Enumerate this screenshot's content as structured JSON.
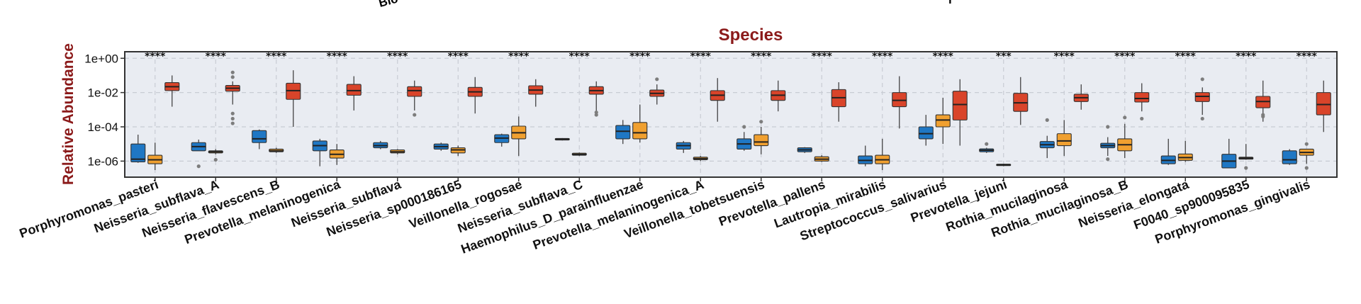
{
  "top_fragment": {
    "left": "Bio",
    "right": "r"
  },
  "chart_data": {
    "type": "box",
    "title": "Species",
    "ylabel": "Relative Abundance",
    "yscale": "log",
    "ylim": [
      3e-07,
      1.5
    ],
    "yticks": [
      1e-06,
      0.0001,
      0.01,
      1
    ],
    "ytick_labels": [
      "1e-06",
      "1e-04",
      "1e-02",
      "1e+00"
    ],
    "grid": true,
    "colors": {
      "group_blue": "#1f77c4",
      "group_orange": "#f0a030",
      "group_red": "#d9442a",
      "title": "#8b1a1a",
      "panel_bg": "#e9ecf2",
      "grid": "#c8ccd4"
    },
    "series": [
      {
        "name": "",
        "color": "#1f77c4"
      },
      {
        "name": "",
        "color": "#f0a030"
      },
      {
        "name": "",
        "color": "#d9442a"
      }
    ],
    "categories": [
      {
        "label": "Porphyromonas_pasteri",
        "sig": "****",
        "boxes": [
          {
            "s": 0,
            "whisker_low": 8e-07,
            "q1": 9e-07,
            "median": 1.3e-06,
            "q3": 1e-05,
            "whisker_high": 3.5e-05,
            "outliers": []
          },
          {
            "s": 1,
            "whisker_low": 3e-07,
            "q1": 7e-07,
            "median": 1.2e-06,
            "q3": 2.2e-06,
            "whisker_high": 1.2e-05,
            "outliers": []
          },
          {
            "s": 2,
            "whisker_low": 0.0015,
            "q1": 0.013,
            "median": 0.022,
            "q3": 0.038,
            "whisker_high": 0.1,
            "outliers": []
          }
        ]
      },
      {
        "label": "Neisseria_subflava_A",
        "sig": "****",
        "boxes": [
          {
            "s": 0,
            "whisker_low": 4e-06,
            "q1": 4e-06,
            "median": 7e-06,
            "q3": 1.2e-05,
            "whisker_high": 1.8e-05,
            "outliers": [
              5e-07
            ]
          },
          {
            "s": 1,
            "whisker_low": 2.5e-06,
            "q1": 3e-06,
            "median": 3.5e-06,
            "q3": 4e-06,
            "whisker_high": 5e-06,
            "outliers": [
              1.2e-06
            ]
          },
          {
            "s": 2,
            "whisker_low": 0.002,
            "q1": 0.012,
            "median": 0.018,
            "q3": 0.026,
            "whisker_high": 0.045,
            "outliers": [
              0.15,
              0.08,
              0.0006,
              0.0003,
              0.00016
            ]
          }
        ]
      },
      {
        "label": "Neisseria_flavescens_B",
        "sig": "****",
        "boxes": [
          {
            "s": 0,
            "whisker_low": 5e-06,
            "q1": 1.2e-05,
            "median": 2e-05,
            "q3": 6e-05,
            "whisker_high": 7e-05,
            "outliers": []
          },
          {
            "s": 1,
            "whisker_low": 3e-06,
            "q1": 3.5e-06,
            "median": 4e-06,
            "q3": 5e-06,
            "whisker_high": 6e-06,
            "outliers": []
          },
          {
            "s": 2,
            "whisker_low": 0.0001,
            "q1": 0.004,
            "median": 0.013,
            "q3": 0.035,
            "whisker_high": 0.2,
            "outliers": []
          }
        ]
      },
      {
        "label": "Prevotella_melaninogenica",
        "sig": "****",
        "boxes": [
          {
            "s": 0,
            "whisker_low": 5e-07,
            "q1": 4e-06,
            "median": 8e-06,
            "q3": 1.5e-05,
            "whisker_high": 2e-05,
            "outliers": []
          },
          {
            "s": 1,
            "whisker_low": 6e-07,
            "q1": 1.5e-06,
            "median": 2.5e-06,
            "q3": 4.5e-06,
            "whisker_high": 1e-05,
            "outliers": []
          },
          {
            "s": 2,
            "whisker_low": 0.0009,
            "q1": 0.007,
            "median": 0.013,
            "q3": 0.03,
            "whisker_high": 0.09,
            "outliers": []
          }
        ]
      },
      {
        "label": "Neisseria_subflava",
        "sig": "****",
        "boxes": [
          {
            "s": 0,
            "whisker_low": 5e-06,
            "q1": 6e-06,
            "median": 8e-06,
            "q3": 1.2e-05,
            "whisker_high": 1.5e-05,
            "outliers": []
          },
          {
            "s": 1,
            "whisker_low": 2.5e-06,
            "q1": 3e-06,
            "median": 3.5e-06,
            "q3": 4.5e-06,
            "whisker_high": 5e-06,
            "outliers": []
          },
          {
            "s": 2,
            "whisker_low": 0.0009,
            "q1": 0.006,
            "median": 0.013,
            "q3": 0.022,
            "whisker_high": 0.05,
            "outliers": [
              0.0005
            ]
          }
        ]
      },
      {
        "label": "Neisseria_sp000186165",
        "sig": "****",
        "boxes": [
          {
            "s": 0,
            "whisker_low": 4e-06,
            "q1": 5e-06,
            "median": 7e-06,
            "q3": 1e-05,
            "whisker_high": 1.2e-05,
            "outliers": []
          },
          {
            "s": 1,
            "whisker_low": 2e-06,
            "q1": 3e-06,
            "median": 4.5e-06,
            "q3": 6e-06,
            "whisker_high": 8e-06,
            "outliers": []
          },
          {
            "s": 2,
            "whisker_low": 0.0006,
            "q1": 0.006,
            "median": 0.011,
            "q3": 0.02,
            "whisker_high": 0.08,
            "outliers": []
          }
        ]
      },
      {
        "label": "Veillonella_rogosae",
        "sig": "****",
        "boxes": [
          {
            "s": 0,
            "whisker_low": 7e-06,
            "q1": 1.2e-05,
            "median": 2.2e-05,
            "q3": 3.5e-05,
            "whisker_high": 4e-05,
            "outliers": []
          },
          {
            "s": 1,
            "whisker_low": 2e-06,
            "q1": 2e-05,
            "median": 4.5e-05,
            "q3": 0.00011,
            "whisker_high": 0.0004,
            "outliers": []
          },
          {
            "s": 2,
            "whisker_low": 0.0015,
            "q1": 0.008,
            "median": 0.014,
            "q3": 0.025,
            "whisker_high": 0.06,
            "outliers": []
          }
        ]
      },
      {
        "label": "Neisseria_subflava_C",
        "sig": "****",
        "boxes": [
          {
            "s": 0,
            "whisker_low": 1.6e-05,
            "q1": 1.7e-05,
            "median": 1.9e-05,
            "q3": 2.1e-05,
            "whisker_high": 2.2e-05,
            "outliers": []
          },
          {
            "s": 1,
            "whisker_low": 2e-06,
            "q1": 2.2e-06,
            "median": 2.5e-06,
            "q3": 2.9e-06,
            "whisker_high": 3.2e-06,
            "outliers": []
          },
          {
            "s": 2,
            "whisker_low": 0.0007,
            "q1": 0.008,
            "median": 0.013,
            "q3": 0.022,
            "whisker_high": 0.045,
            "outliers": [
              0.0005,
              0.0007
            ]
          }
        ]
      },
      {
        "label": "Haemophilus_D_parainfluenzae",
        "sig": "****",
        "boxes": [
          {
            "s": 0,
            "whisker_low": 1e-05,
            "q1": 2e-05,
            "median": 5.5e-05,
            "q3": 0.00012,
            "whisker_high": 0.00025,
            "outliers": []
          },
          {
            "s": 1,
            "whisker_low": 1.2e-05,
            "q1": 2e-05,
            "median": 4.5e-05,
            "q3": 0.00018,
            "whisker_high": 0.002,
            "outliers": []
          },
          {
            "s": 2,
            "whisker_low": 0.002,
            "q1": 0.006,
            "median": 0.009,
            "q3": 0.014,
            "whisker_high": 0.03,
            "outliers": [
              0.06
            ]
          }
        ]
      },
      {
        "label": "Prevotella_melaninogenica_A",
        "sig": "****",
        "boxes": [
          {
            "s": 0,
            "whisker_low": 3e-06,
            "q1": 5e-06,
            "median": 8e-06,
            "q3": 1.2e-05,
            "whisker_high": 1.5e-05,
            "outliers": []
          },
          {
            "s": 1,
            "whisker_low": 1e-06,
            "q1": 1.2e-06,
            "median": 1.4e-06,
            "q3": 1.7e-06,
            "whisker_high": 2e-06,
            "outliers": []
          },
          {
            "s": 2,
            "whisker_low": 0.0002,
            "q1": 0.0035,
            "median": 0.007,
            "q3": 0.013,
            "whisker_high": 0.07,
            "outliers": []
          }
        ]
      },
      {
        "label": "Veillonella_tobetsuensis",
        "sig": "****",
        "boxes": [
          {
            "s": 0,
            "whisker_low": 4e-06,
            "q1": 5e-06,
            "median": 1e-05,
            "q3": 2e-05,
            "whisker_high": 5e-05,
            "outliers": [
              0.0001
            ]
          },
          {
            "s": 1,
            "whisker_low": 2.5e-06,
            "q1": 8e-06,
            "median": 1.3e-05,
            "q3": 3.5e-05,
            "whisker_high": 0.0001,
            "outliers": [
              0.0002
            ]
          },
          {
            "s": 2,
            "whisker_low": 0.0008,
            "q1": 0.0035,
            "median": 0.007,
            "q3": 0.013,
            "whisker_high": 0.05,
            "outliers": []
          }
        ]
      },
      {
        "label": "Prevotella_pallens",
        "sig": "****",
        "boxes": [
          {
            "s": 0,
            "whisker_low": 3e-06,
            "q1": 3.5e-06,
            "median": 4.5e-06,
            "q3": 6e-06,
            "whisker_high": 6.5e-06,
            "outliers": []
          },
          {
            "s": 1,
            "whisker_low": 9e-07,
            "q1": 1e-06,
            "median": 1.3e-06,
            "q3": 1.8e-06,
            "whisker_high": 2.2e-06,
            "outliers": []
          },
          {
            "s": 2,
            "whisker_low": 0.0002,
            "q1": 0.0015,
            "median": 0.005,
            "q3": 0.015,
            "whisker_high": 0.04,
            "outliers": []
          }
        ]
      },
      {
        "label": "Lautropia_mirabilis",
        "sig": "****",
        "boxes": [
          {
            "s": 0,
            "whisker_low": 5e-07,
            "q1": 7e-07,
            "median": 1.1e-06,
            "q3": 2e-06,
            "whisker_high": 8e-06,
            "outliers": []
          },
          {
            "s": 1,
            "whisker_low": 3e-07,
            "q1": 7e-07,
            "median": 1.2e-06,
            "q3": 2.2e-06,
            "whisker_high": 2e-05,
            "outliers": []
          },
          {
            "s": 2,
            "whisker_low": 8e-05,
            "q1": 0.0015,
            "median": 0.0035,
            "q3": 0.01,
            "whisker_high": 0.09,
            "outliers": []
          }
        ]
      },
      {
        "label": "Streptococcus_salivarius",
        "sig": "****",
        "boxes": [
          {
            "s": 0,
            "whisker_low": 8e-06,
            "q1": 2e-05,
            "median": 4e-05,
            "q3": 0.0001,
            "whisker_high": 0.0005,
            "outliers": []
          },
          {
            "s": 1,
            "whisker_low": 1e-05,
            "q1": 0.0001,
            "median": 0.00025,
            "q3": 0.0005,
            "whisker_high": 0.005,
            "outliers": []
          },
          {
            "s": 2,
            "whisker_low": 8e-06,
            "q1": 0.00025,
            "median": 0.002,
            "q3": 0.012,
            "whisker_high": 0.06,
            "outliers": []
          }
        ]
      },
      {
        "label": "Prevotella_jejuni",
        "sig": "***",
        "boxes": [
          {
            "s": 0,
            "whisker_low": 3e-06,
            "q1": 3.5e-06,
            "median": 4.3e-06,
            "q3": 5.2e-06,
            "whisker_high": 6e-06,
            "outliers": [
              1e-05
            ]
          },
          {
            "s": 1,
            "whisker_low": 5e-07,
            "q1": 5.5e-07,
            "median": 6e-07,
            "q3": 6.6e-07,
            "whisker_high": 7e-07,
            "outliers": []
          },
          {
            "s": 2,
            "whisker_low": 0.00013,
            "q1": 0.0008,
            "median": 0.0025,
            "q3": 0.009,
            "whisker_high": 0.08,
            "outliers": []
          }
        ]
      },
      {
        "label": "Rothia_mucilaginosa",
        "sig": "****",
        "boxes": [
          {
            "s": 0,
            "whisker_low": 1.5e-06,
            "q1": 6e-06,
            "median": 9e-06,
            "q3": 1.4e-05,
            "whisker_high": 3e-05,
            "outliers": [
              0.00025
            ]
          },
          {
            "s": 1,
            "whisker_low": 2e-06,
            "q1": 8e-06,
            "median": 1.5e-05,
            "q3": 4e-05,
            "whisker_high": 0.00025,
            "outliers": []
          },
          {
            "s": 2,
            "whisker_low": 0.001,
            "q1": 0.003,
            "median": 0.005,
            "q3": 0.008,
            "whisker_high": 0.03,
            "outliers": []
          }
        ]
      },
      {
        "label": "Rothia_mucilaginosa_B",
        "sig": "****",
        "boxes": [
          {
            "s": 0,
            "whisker_low": 2e-06,
            "q1": 6e-06,
            "median": 8e-06,
            "q3": 1.1e-05,
            "whisker_high": 2.5e-05,
            "outliers": [
              1.3e-06,
              0.0001
            ]
          },
          {
            "s": 1,
            "whisker_low": 1.5e-06,
            "q1": 4e-06,
            "median": 9e-06,
            "q3": 2e-05,
            "whisker_high": 0.00015,
            "outliers": [
              0.00035
            ]
          },
          {
            "s": 2,
            "whisker_low": 0.0008,
            "q1": 0.0028,
            "median": 0.0045,
            "q3": 0.01,
            "whisker_high": 0.035,
            "outliers": [
              0.0003
            ]
          }
        ]
      },
      {
        "label": "Neisseria_elongata",
        "sig": "****",
        "boxes": [
          {
            "s": 0,
            "whisker_low": 6e-07,
            "q1": 7e-07,
            "median": 1.1e-06,
            "q3": 2e-06,
            "whisker_high": 2e-05,
            "outliers": []
          },
          {
            "s": 1,
            "whisker_low": 9e-07,
            "q1": 1.1e-06,
            "median": 1.6e-06,
            "q3": 2.6e-06,
            "whisker_high": 1.5e-05,
            "outliers": []
          },
          {
            "s": 2,
            "whisker_low": 0.0005,
            "q1": 0.003,
            "median": 0.006,
            "q3": 0.01,
            "whisker_high": 0.02,
            "outliers": [
              0.0003,
              0.06
            ]
          }
        ]
      },
      {
        "label": "F0040_sp900095835",
        "sig": "****",
        "boxes": [
          {
            "s": 0,
            "whisker_low": 4e-07,
            "q1": 4e-07,
            "median": 1e-06,
            "q3": 2.5e-06,
            "whisker_high": 2e-05,
            "outliers": []
          },
          {
            "s": 1,
            "whisker_low": 1.2e-06,
            "q1": 1.3e-06,
            "median": 1.5e-06,
            "q3": 1.7e-06,
            "whisker_high": 1e-05,
            "outliers": [
              4e-07
            ]
          },
          {
            "s": 2,
            "whisker_low": 0.0002,
            "q1": 0.0013,
            "median": 0.003,
            "q3": 0.006,
            "whisker_high": 0.05,
            "outliers": [
              0.0004,
              0.0005
            ]
          }
        ]
      },
      {
        "label": "Porphyromonas_gingivalis",
        "sig": "****",
        "boxes": [
          {
            "s": 0,
            "whisker_low": 6e-07,
            "q1": 7e-07,
            "median": 1.2e-06,
            "q3": 4e-06,
            "whisker_high": 5e-06,
            "outliers": []
          },
          {
            "s": 1,
            "whisker_low": 7e-07,
            "q1": 2.2e-06,
            "median": 3.2e-06,
            "q3": 5e-06,
            "whisker_high": 5e-06,
            "outliers": [
              4e-07,
              1e-05
            ]
          },
          {
            "s": 2,
            "whisker_low": 5e-05,
            "q1": 0.0005,
            "median": 0.002,
            "q3": 0.01,
            "whisker_high": 0.05,
            "outliers": []
          }
        ]
      }
    ]
  }
}
